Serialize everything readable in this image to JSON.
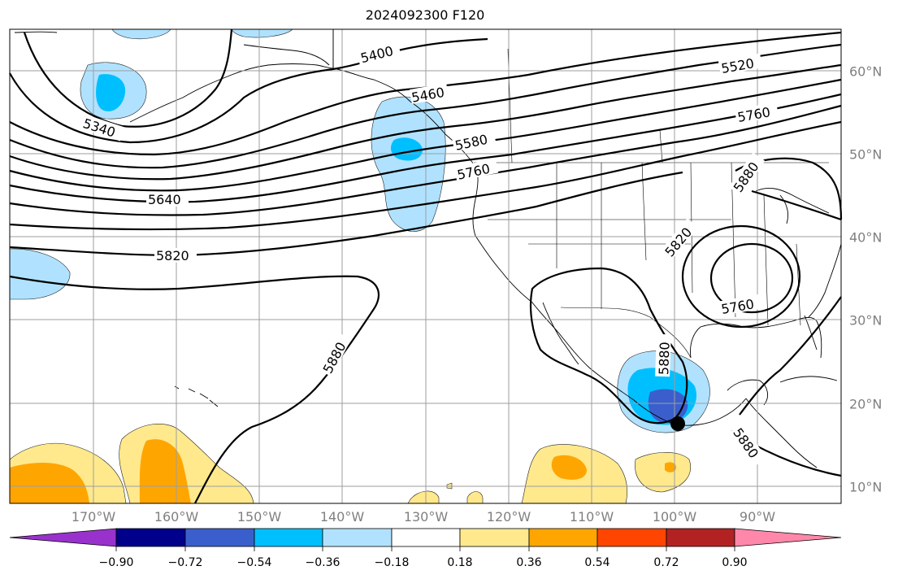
{
  "title": "2024092300 F120",
  "map": {
    "projection": "cylindrical",
    "lon_range": [
      -180,
      -79
    ],
    "lat_range": [
      8,
      65
    ],
    "gridlines": true
  },
  "lon_labels": [
    "170°W",
    "160°W",
    "150°W",
    "140°W",
    "130°W",
    "120°W",
    "110°W",
    "100°W",
    "90°W"
  ],
  "lat_labels": [
    "60°N",
    "50°N",
    "40°N",
    "30°N",
    "20°N",
    "10°N"
  ],
  "contour_labels": [
    "5400",
    "5460",
    "5340",
    "5520",
    "5580",
    "5760",
    "5760",
    "5640",
    "5880",
    "5820",
    "5820",
    "5760",
    "5880",
    "5880",
    "5880"
  ],
  "marker": {
    "description": "black circle",
    "color": "#000000"
  },
  "colorbar": {
    "ticks": [
      "−0.90",
      "−0.72",
      "−0.54",
      "−0.36",
      "−0.18",
      "0.18",
      "0.36",
      "0.54",
      "0.72",
      "0.90"
    ],
    "colors": [
      "#9932cc",
      "#00008b",
      "#3a5fcd",
      "#00bfff",
      "#b0e2ff",
      "#ffffff",
      "#ffe98c",
      "#ffa500",
      "#ff4500",
      "#b22222",
      "#ff88aa"
    ]
  }
}
